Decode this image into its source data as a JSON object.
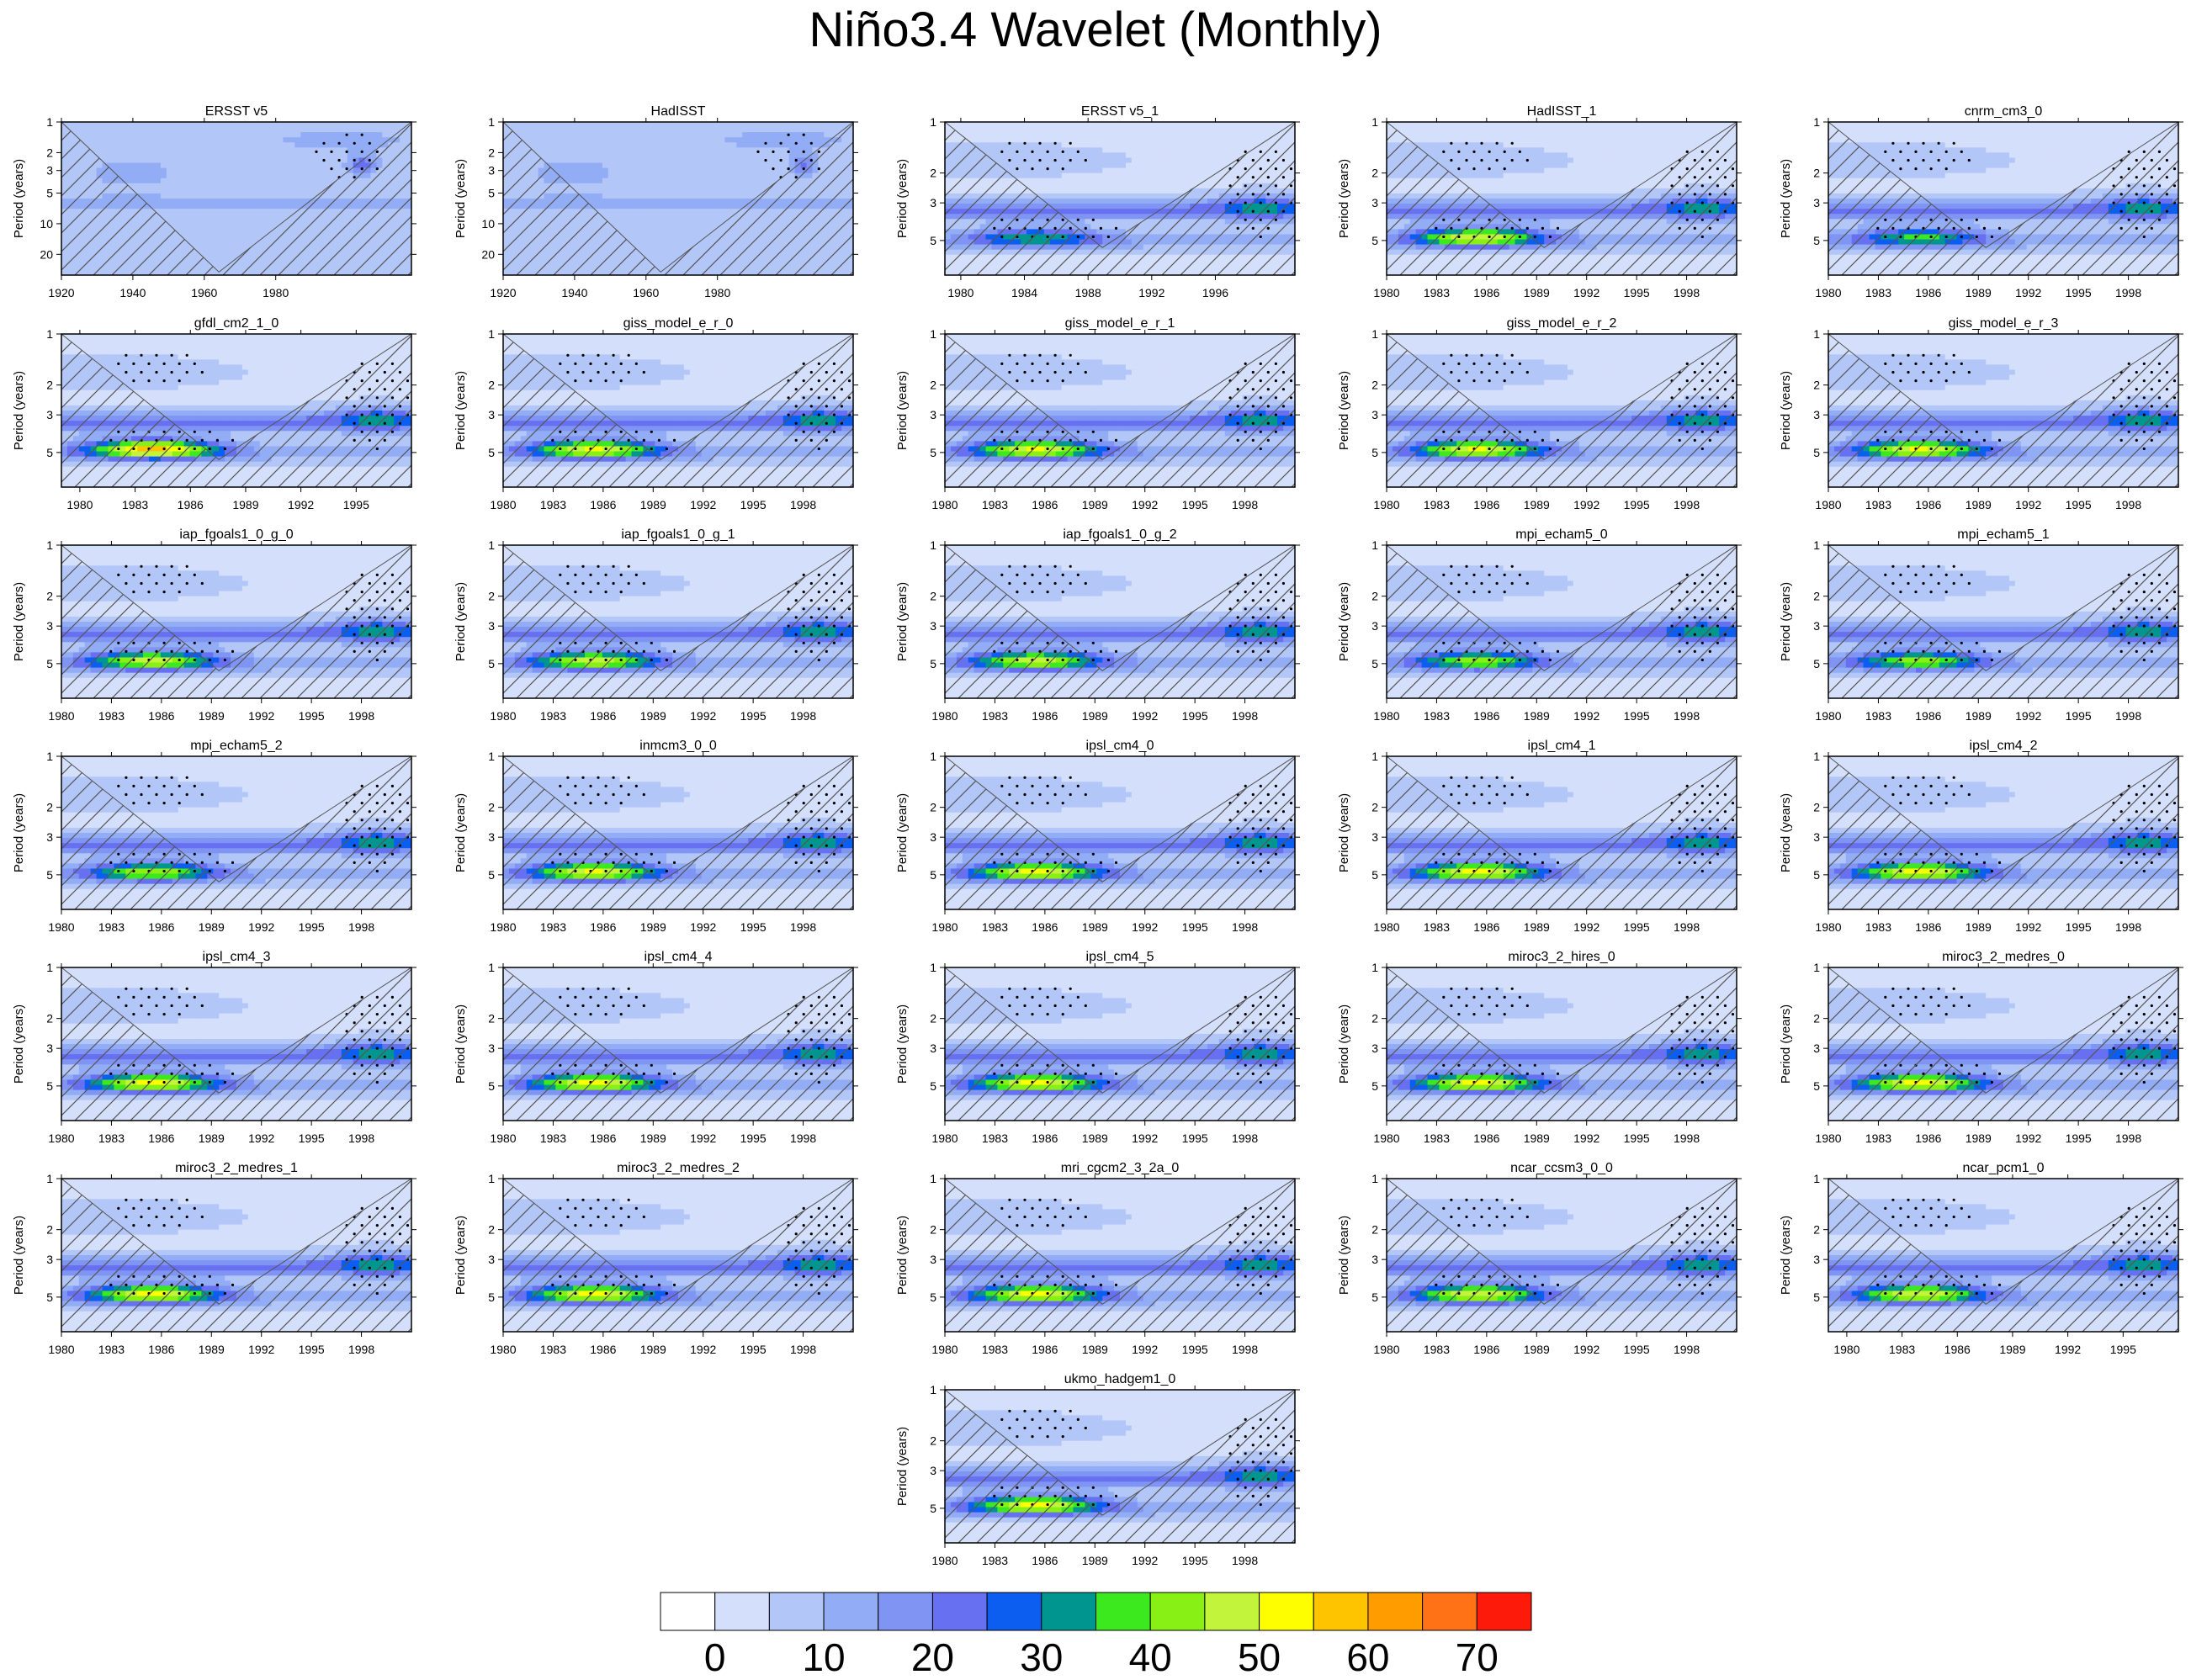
{
  "title": "Niño3.4 Wavelet (Monthly)",
  "ylabel": "Period (years)",
  "colors": [
    "#ffffff",
    "#d4dffb",
    "#b3c6f8",
    "#92acf5",
    "#7f94f3",
    "#6670f0",
    "#0b5ef0",
    "#009690",
    "#3ce81e",
    "#88f015",
    "#c2f43c",
    "#fffe00",
    "#ffc400",
    "#ff9c00",
    "#ff7316",
    "#fe1a0a"
  ],
  "colorbar": {
    "levels": [
      0,
      5,
      10,
      15,
      20,
      25,
      30,
      35,
      40,
      45,
      50,
      55,
      60,
      65,
      70
    ],
    "tick_labels": [
      "0",
      "10",
      "20",
      "30",
      "40",
      "50",
      "60",
      "70"
    ]
  },
  "chart_data": [
    {
      "type": "heatmap",
      "title": "ERSST v5",
      "x_range": [
        1920,
        2018
      ],
      "x_ticks": [
        "1920",
        "1940",
        "1960",
        "1980"
      ],
      "y_range": [
        1,
        32
      ],
      "y_ticks": [
        "1",
        "2",
        "3",
        "5",
        "10",
        "20"
      ],
      "max_power": 22
    },
    {
      "type": "heatmap",
      "title": "HadISST",
      "x_range": [
        1920,
        2018
      ],
      "x_ticks": [
        "1920",
        "1940",
        "1960",
        "1980"
      ],
      "y_range": [
        1,
        32
      ],
      "y_ticks": [
        "1",
        "2",
        "3",
        "5",
        "10",
        "20"
      ],
      "max_power": 18
    },
    {
      "type": "heatmap",
      "title": "ERSST v5_1",
      "x_range": [
        1979,
        2001
      ],
      "x_ticks": [
        "1980",
        "1984",
        "1988",
        "1992",
        "1996"
      ],
      "y_range": [
        1,
        8
      ],
      "y_ticks": [
        "1",
        "2",
        "3",
        "5"
      ],
      "max_power": 26
    },
    {
      "type": "heatmap",
      "title": "HadISST_1",
      "x_range": [
        1980,
        2001
      ],
      "x_ticks": [
        "1980",
        "1983",
        "1986",
        "1989",
        "1992",
        "1995",
        "1998"
      ],
      "y_range": [
        1,
        8
      ],
      "y_ticks": [
        "1",
        "2",
        "3",
        "5"
      ],
      "max_power": 42
    },
    {
      "type": "heatmap",
      "title": "cnrm_cm3_0",
      "x_range": [
        1980,
        2001
      ],
      "x_ticks": [
        "1980",
        "1983",
        "1986",
        "1989",
        "1992",
        "1995",
        "1998"
      ],
      "y_range": [
        1,
        8
      ],
      "y_ticks": [
        "1",
        "2",
        "3",
        "5"
      ],
      "max_power": 28
    },
    {
      "type": "heatmap",
      "title": "gfdl_cm2_1_0",
      "x_range": [
        1979,
        1998
      ],
      "x_ticks": [
        "1980",
        "1983",
        "1986",
        "1989",
        "1992",
        "1995"
      ],
      "y_range": [
        1,
        8
      ],
      "y_ticks": [
        "1",
        "2",
        "3",
        "5"
      ],
      "max_power": 50
    },
    {
      "type": "heatmap",
      "title": "giss_model_e_r_0",
      "x_range": [
        1980,
        2001
      ],
      "x_ticks": [
        "1980",
        "1983",
        "1986",
        "1989",
        "1992",
        "1995",
        "1998"
      ],
      "y_range": [
        1,
        8
      ],
      "y_ticks": [
        "1",
        "2",
        "3",
        "5"
      ],
      "max_power": 43
    },
    {
      "type": "heatmap",
      "title": "giss_model_e_r_1",
      "x_range": [
        1980,
        2001
      ],
      "x_ticks": [
        "1980",
        "1983",
        "1986",
        "1989",
        "1992",
        "1995",
        "1998"
      ],
      "y_range": [
        1,
        8
      ],
      "y_ticks": [
        "1",
        "2",
        "3",
        "5"
      ],
      "max_power": 43
    },
    {
      "type": "heatmap",
      "title": "giss_model_e_r_2",
      "x_range": [
        1980,
        2001
      ],
      "x_ticks": [
        "1980",
        "1983",
        "1986",
        "1989",
        "1992",
        "1995",
        "1998"
      ],
      "y_range": [
        1,
        8
      ],
      "y_ticks": [
        "1",
        "2",
        "3",
        "5"
      ],
      "max_power": 43
    },
    {
      "type": "heatmap",
      "title": "giss_model_e_r_3",
      "x_range": [
        1980,
        2001
      ],
      "x_ticks": [
        "1980",
        "1983",
        "1986",
        "1989",
        "1992",
        "1995",
        "1998"
      ],
      "y_range": [
        1,
        8
      ],
      "y_ticks": [
        "1",
        "2",
        "3",
        "5"
      ],
      "max_power": 43
    },
    {
      "type": "heatmap",
      "title": "iap_fgoals1_0_g_0",
      "x_range": [
        1980,
        2001
      ],
      "x_ticks": [
        "1980",
        "1983",
        "1986",
        "1989",
        "1992",
        "1995",
        "1998"
      ],
      "y_range": [
        1,
        8
      ],
      "y_ticks": [
        "1",
        "2",
        "3",
        "5"
      ],
      "max_power": 40
    },
    {
      "type": "heatmap",
      "title": "iap_fgoals1_0_g_1",
      "x_range": [
        1980,
        2001
      ],
      "x_ticks": [
        "1980",
        "1983",
        "1986",
        "1989",
        "1992",
        "1995",
        "1998"
      ],
      "y_range": [
        1,
        8
      ],
      "y_ticks": [
        "1",
        "2",
        "3",
        "5"
      ],
      "max_power": 40
    },
    {
      "type": "heatmap",
      "title": "iap_fgoals1_0_g_2",
      "x_range": [
        1980,
        2001
      ],
      "x_ticks": [
        "1980",
        "1983",
        "1986",
        "1989",
        "1992",
        "1995",
        "1998"
      ],
      "y_range": [
        1,
        8
      ],
      "y_ticks": [
        "1",
        "2",
        "3",
        "5"
      ],
      "max_power": 40
    },
    {
      "type": "heatmap",
      "title": "mpi_echam5_0",
      "x_range": [
        1980,
        2001
      ],
      "x_ticks": [
        "1980",
        "1983",
        "1986",
        "1989",
        "1992",
        "1995",
        "1998"
      ],
      "y_range": [
        1,
        8
      ],
      "y_ticks": [
        "1",
        "2",
        "3",
        "5"
      ],
      "max_power": 34
    },
    {
      "type": "heatmap",
      "title": "mpi_echam5_1",
      "x_range": [
        1980,
        2001
      ],
      "x_ticks": [
        "1980",
        "1983",
        "1986",
        "1989",
        "1992",
        "1995",
        "1998"
      ],
      "y_range": [
        1,
        8
      ],
      "y_ticks": [
        "1",
        "2",
        "3",
        "5"
      ],
      "max_power": 34
    },
    {
      "type": "heatmap",
      "title": "mpi_echam5_2",
      "x_range": [
        1980,
        2001
      ],
      "x_ticks": [
        "1980",
        "1983",
        "1986",
        "1989",
        "1992",
        "1995",
        "1998"
      ],
      "y_range": [
        1,
        8
      ],
      "y_ticks": [
        "1",
        "2",
        "3",
        "5"
      ],
      "max_power": 36
    },
    {
      "type": "heatmap",
      "title": "inmcm3_0_0",
      "x_range": [
        1980,
        2001
      ],
      "x_ticks": [
        "1980",
        "1983",
        "1986",
        "1989",
        "1992",
        "1995",
        "1998"
      ],
      "y_range": [
        1,
        8
      ],
      "y_ticks": [
        "1",
        "2",
        "3",
        "5"
      ],
      "max_power": 43
    },
    {
      "type": "heatmap",
      "title": "ipsl_cm4_0",
      "x_range": [
        1980,
        2001
      ],
      "x_ticks": [
        "1980",
        "1983",
        "1986",
        "1989",
        "1992",
        "1995",
        "1998"
      ],
      "y_range": [
        1,
        8
      ],
      "y_ticks": [
        "1",
        "2",
        "3",
        "5"
      ],
      "max_power": 44
    },
    {
      "type": "heatmap",
      "title": "ipsl_cm4_1",
      "x_range": [
        1980,
        2001
      ],
      "x_ticks": [
        "1980",
        "1983",
        "1986",
        "1989",
        "1992",
        "1995",
        "1998"
      ],
      "y_range": [
        1,
        8
      ],
      "y_ticks": [
        "1",
        "2",
        "3",
        "5"
      ],
      "max_power": 44
    },
    {
      "type": "heatmap",
      "title": "ipsl_cm4_2",
      "x_range": [
        1980,
        2001
      ],
      "x_ticks": [
        "1980",
        "1983",
        "1986",
        "1989",
        "1992",
        "1995",
        "1998"
      ],
      "y_range": [
        1,
        8
      ],
      "y_ticks": [
        "1",
        "2",
        "3",
        "5"
      ],
      "max_power": 44
    },
    {
      "type": "heatmap",
      "title": "ipsl_cm4_3",
      "x_range": [
        1980,
        2001
      ],
      "x_ticks": [
        "1980",
        "1983",
        "1986",
        "1989",
        "1992",
        "1995",
        "1998"
      ],
      "y_range": [
        1,
        8
      ],
      "y_ticks": [
        "1",
        "2",
        "3",
        "5"
      ],
      "max_power": 44
    },
    {
      "type": "heatmap",
      "title": "ipsl_cm4_4",
      "x_range": [
        1980,
        2001
      ],
      "x_ticks": [
        "1980",
        "1983",
        "1986",
        "1989",
        "1992",
        "1995",
        "1998"
      ],
      "y_range": [
        1,
        8
      ],
      "y_ticks": [
        "1",
        "2",
        "3",
        "5"
      ],
      "max_power": 44
    },
    {
      "type": "heatmap",
      "title": "ipsl_cm4_5",
      "x_range": [
        1980,
        2001
      ],
      "x_ticks": [
        "1980",
        "1983",
        "1986",
        "1989",
        "1992",
        "1995",
        "1998"
      ],
      "y_range": [
        1,
        8
      ],
      "y_ticks": [
        "1",
        "2",
        "3",
        "5"
      ],
      "max_power": 44
    },
    {
      "type": "heatmap",
      "title": "miroc3_2_hires_0",
      "x_range": [
        1980,
        2001
      ],
      "x_ticks": [
        "1980",
        "1983",
        "1986",
        "1989",
        "1992",
        "1995",
        "1998"
      ],
      "y_range": [
        1,
        8
      ],
      "y_ticks": [
        "1",
        "2",
        "3",
        "5"
      ],
      "max_power": 44
    },
    {
      "type": "heatmap",
      "title": "miroc3_2_medres_0",
      "x_range": [
        1980,
        2001
      ],
      "x_ticks": [
        "1980",
        "1983",
        "1986",
        "1989",
        "1992",
        "1995",
        "1998"
      ],
      "y_range": [
        1,
        8
      ],
      "y_ticks": [
        "1",
        "2",
        "3",
        "5"
      ],
      "max_power": 44
    },
    {
      "type": "heatmap",
      "title": "miroc3_2_medres_1",
      "x_range": [
        1980,
        2001
      ],
      "x_ticks": [
        "1980",
        "1983",
        "1986",
        "1989",
        "1992",
        "1995",
        "1998"
      ],
      "y_range": [
        1,
        8
      ],
      "y_ticks": [
        "1",
        "2",
        "3",
        "5"
      ],
      "max_power": 44
    },
    {
      "type": "heatmap",
      "title": "miroc3_2_medres_2",
      "x_range": [
        1980,
        2001
      ],
      "x_ticks": [
        "1980",
        "1983",
        "1986",
        "1989",
        "1992",
        "1995",
        "1998"
      ],
      "y_range": [
        1,
        8
      ],
      "y_ticks": [
        "1",
        "2",
        "3",
        "5"
      ],
      "max_power": 44
    },
    {
      "type": "heatmap",
      "title": "mri_cgcm2_3_2a_0",
      "x_range": [
        1980,
        2001
      ],
      "x_ticks": [
        "1980",
        "1983",
        "1986",
        "1989",
        "1992",
        "1995",
        "1998"
      ],
      "y_range": [
        1,
        8
      ],
      "y_ticks": [
        "1",
        "2",
        "3",
        "5"
      ],
      "max_power": 44
    },
    {
      "type": "heatmap",
      "title": "ncar_ccsm3_0_0",
      "x_range": [
        1980,
        2001
      ],
      "x_ticks": [
        "1980",
        "1983",
        "1986",
        "1989",
        "1992",
        "1995",
        "1998"
      ],
      "y_range": [
        1,
        8
      ],
      "y_ticks": [
        "1",
        "2",
        "3",
        "5"
      ],
      "max_power": 42
    },
    {
      "type": "heatmap",
      "title": "ncar_pcm1_0",
      "x_range": [
        1979,
        1998
      ],
      "x_ticks": [
        "1980",
        "1983",
        "1986",
        "1989",
        "1992",
        "1995"
      ],
      "y_range": [
        1,
        8
      ],
      "y_ticks": [
        "1",
        "2",
        "3",
        "5"
      ],
      "max_power": 42
    },
    {
      "type": "heatmap",
      "title": "ukmo_hadgem1_0",
      "x_range": [
        1980,
        2001
      ],
      "x_ticks": [
        "1980",
        "1983",
        "1986",
        "1989",
        "1992",
        "1995",
        "1998"
      ],
      "y_range": [
        1,
        8
      ],
      "y_ticks": [
        "1",
        "2",
        "3",
        "5"
      ],
      "max_power": 44
    }
  ]
}
